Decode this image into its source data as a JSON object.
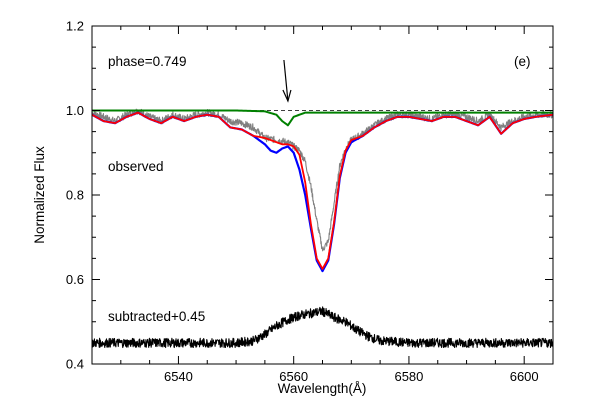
{
  "chart_data": {
    "type": "line",
    "xlabel": "Wavelength(Å)",
    "ylabel": "Normalized Flux",
    "xlim": [
      6525,
      6605
    ],
    "ylim": [
      0.4,
      1.2
    ],
    "xticks": [
      "6540",
      "6560",
      "6580",
      "6600"
    ],
    "yticks": [
      "0.4",
      "0.6",
      "0.8",
      "1.0",
      "1.2"
    ],
    "grid": false,
    "annotations": {
      "phase": "phase=0.749",
      "panel": "(e)",
      "observed": "observed",
      "subtracted": "subtracted+0.45"
    },
    "arrow_wavelength": 6559,
    "reference_level": 1.0,
    "colors": {
      "observed": "#808080",
      "blue_model": "#0000ff",
      "red_model": "#ff0000",
      "green_model": "#008000",
      "subtracted": "#000000",
      "reference_line": "#000000"
    },
    "series": [
      {
        "x": [
          6525,
          6527,
          6529,
          6531,
          6533,
          6535,
          6537,
          6539,
          6541,
          6543,
          6545,
          6547,
          6549,
          6551,
          6553,
          6555,
          6557,
          6559,
          6561,
          6562,
          6563,
          6564,
          6565,
          6566,
          6567,
          6568,
          6569,
          6570,
          6572,
          6574,
          6576,
          6578,
          6580,
          6582,
          6584,
          6586,
          6588,
          6590,
          6592,
          6594,
          6596,
          6598,
          6600,
          6602,
          6605
        ],
        "values": [
          0.995,
          0.985,
          0.975,
          0.99,
          1.0,
          0.985,
          0.975,
          0.99,
          0.98,
          0.99,
          0.995,
          0.99,
          0.975,
          0.97,
          0.96,
          0.935,
          0.93,
          0.925,
          0.905,
          0.88,
          0.82,
          0.74,
          0.67,
          0.69,
          0.78,
          0.87,
          0.91,
          0.93,
          0.945,
          0.965,
          0.98,
          0.99,
          0.99,
          0.985,
          0.98,
          0.99,
          0.99,
          0.985,
          0.975,
          0.99,
          0.96,
          0.975,
          0.985,
          0.99,
          0.99
        ]
      },
      {
        "x": [
          6525,
          6527,
          6529,
          6531,
          6533,
          6535,
          6537,
          6539,
          6541,
          6543,
          6545,
          6547,
          6549,
          6551,
          6553,
          6555,
          6556,
          6557,
          6558,
          6559,
          6560,
          6561,
          6562,
          6563,
          6564,
          6565,
          6566,
          6567,
          6568,
          6569,
          6570,
          6572,
          6574,
          6576,
          6578,
          6580,
          6582,
          6584,
          6586,
          6588,
          6590,
          6592,
          6594,
          6596,
          6598,
          6600,
          6602,
          6605
        ],
        "values": [
          0.99,
          0.975,
          0.97,
          0.985,
          0.995,
          0.98,
          0.97,
          0.985,
          0.975,
          0.985,
          0.99,
          0.985,
          0.96,
          0.955,
          0.94,
          0.92,
          0.905,
          0.9,
          0.91,
          0.915,
          0.9,
          0.86,
          0.8,
          0.72,
          0.645,
          0.62,
          0.645,
          0.73,
          0.84,
          0.9,
          0.925,
          0.94,
          0.96,
          0.975,
          0.985,
          0.985,
          0.98,
          0.975,
          0.985,
          0.985,
          0.975,
          0.965,
          0.985,
          0.945,
          0.97,
          0.98,
          0.985,
          0.99
        ]
      },
      {
        "x": [
          6525,
          6527,
          6529,
          6531,
          6533,
          6535,
          6537,
          6539,
          6541,
          6543,
          6545,
          6547,
          6549,
          6551,
          6553,
          6555,
          6556,
          6557,
          6558,
          6559,
          6560,
          6561,
          6562,
          6563,
          6564,
          6565,
          6566,
          6567,
          6568,
          6569,
          6570,
          6572,
          6574,
          6576,
          6578,
          6580,
          6582,
          6584,
          6586,
          6588,
          6590,
          6592,
          6594,
          6596,
          6598,
          6600,
          6602,
          6605
        ],
        "values": [
          0.99,
          0.975,
          0.97,
          0.985,
          0.995,
          0.98,
          0.97,
          0.985,
          0.975,
          0.985,
          0.99,
          0.985,
          0.96,
          0.955,
          0.94,
          0.935,
          0.93,
          0.925,
          0.92,
          0.92,
          0.915,
          0.895,
          0.83,
          0.73,
          0.65,
          0.625,
          0.65,
          0.735,
          0.845,
          0.905,
          0.93,
          0.94,
          0.96,
          0.975,
          0.985,
          0.985,
          0.98,
          0.975,
          0.985,
          0.985,
          0.975,
          0.965,
          0.985,
          0.945,
          0.97,
          0.98,
          0.985,
          0.99
        ]
      },
      {
        "x": [
          6525,
          6530,
          6540,
          6550,
          6555,
          6557,
          6558,
          6559,
          6560,
          6562,
          6565,
          6570,
          6580,
          6590,
          6600,
          6605
        ],
        "values": [
          1.0,
          1.0,
          1.0,
          1.0,
          0.998,
          0.99,
          0.975,
          0.965,
          0.985,
          0.995,
          0.995,
          0.995,
          0.995,
          0.995,
          0.995,
          0.995
        ]
      },
      {
        "x": [
          6525,
          6530,
          6540,
          6550,
          6553,
          6555,
          6557,
          6559,
          6561,
          6563,
          6565,
          6567,
          6569,
          6571,
          6573,
          6575,
          6580,
          6590,
          6600,
          6605
        ],
        "values": [
          0.45,
          0.45,
          0.45,
          0.45,
          0.455,
          0.47,
          0.49,
          0.505,
          0.515,
          0.52,
          0.525,
          0.51,
          0.5,
          0.48,
          0.465,
          0.455,
          0.45,
          0.45,
          0.45,
          0.45
        ]
      }
    ]
  }
}
